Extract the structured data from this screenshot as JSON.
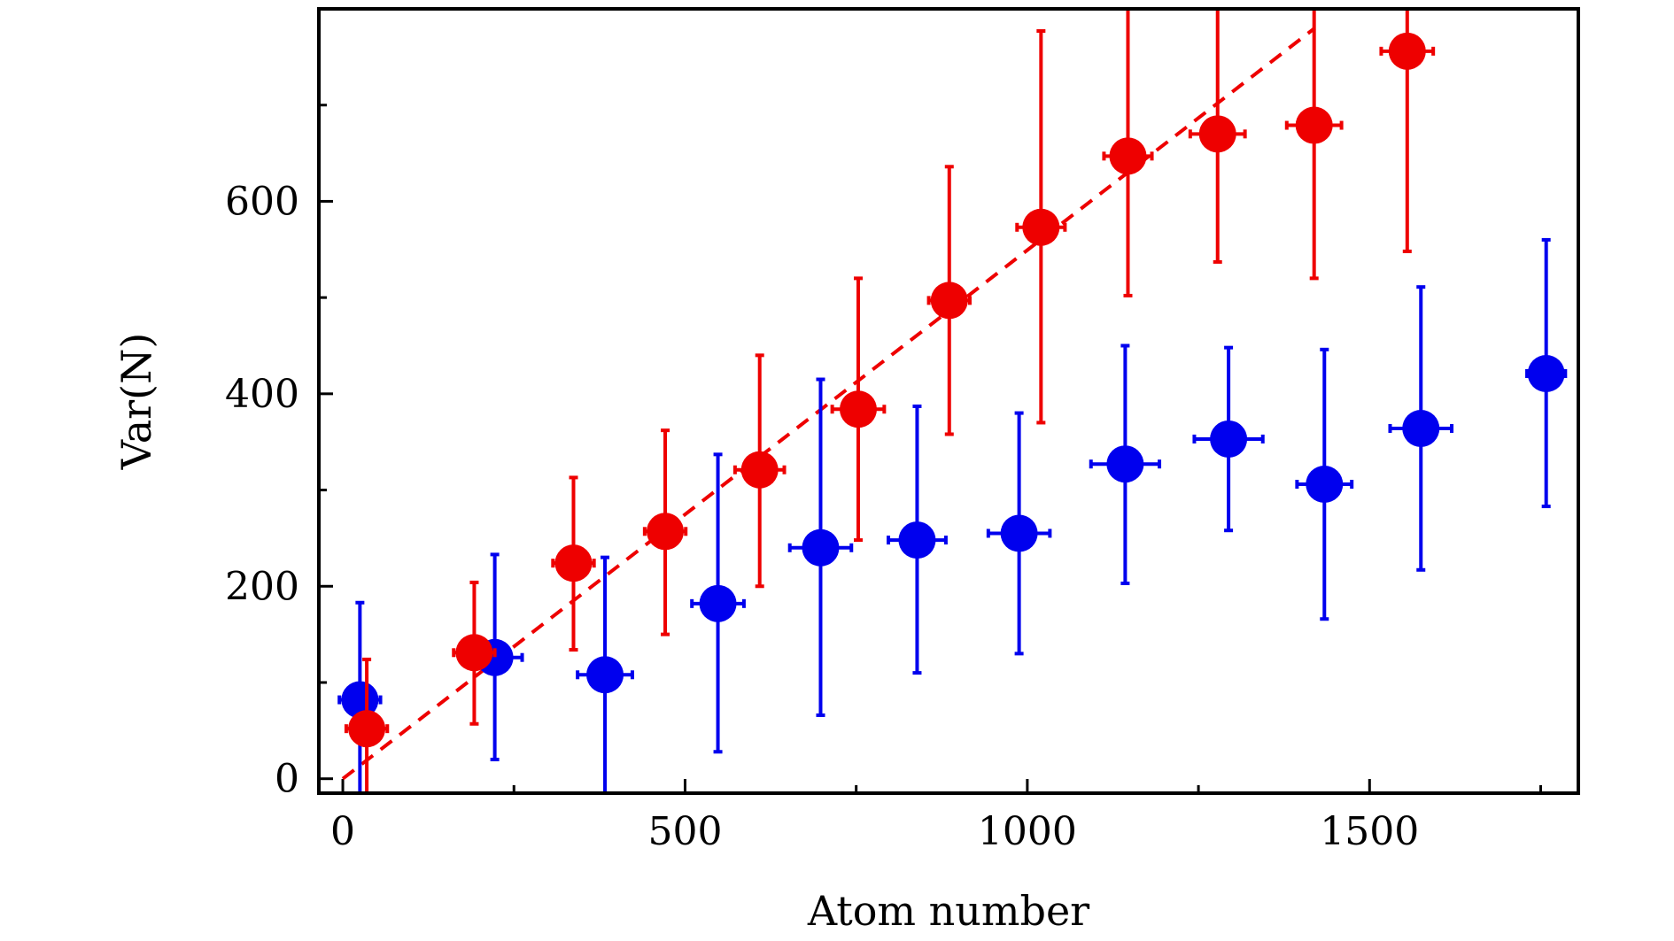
{
  "chart_data": {
    "type": "scatter",
    "title": "",
    "xlabel": "Atom number",
    "ylabel": "Var(N)",
    "xlim": [
      -35,
      1805
    ],
    "ylim": [
      -15,
      800
    ],
    "grid": false,
    "xticks": [
      {
        "value": 0,
        "label": "0"
      },
      {
        "value": 500,
        "label": "500"
      },
      {
        "value": 1000,
        "label": "1000"
      },
      {
        "value": 1500,
        "label": "1500"
      }
    ],
    "yticks": [
      {
        "value": 0,
        "label": "0"
      },
      {
        "value": 200,
        "label": "200"
      },
      {
        "value": 400,
        "label": "400"
      },
      {
        "value": 600,
        "label": "600"
      }
    ],
    "xminor": [
      250,
      750,
      1250,
      1750
    ],
    "yminor": [
      100,
      300,
      500,
      700
    ],
    "series": [
      {
        "color": "#0000ee",
        "points": [
          {
            "x": 25,
            "y": 82,
            "xerr": 30,
            "ylo": -15,
            "yhi": 183
          },
          {
            "x": 222,
            "y": 126,
            "xerr": 40,
            "ylo": 20,
            "yhi": 233
          },
          {
            "x": 383,
            "y": 108,
            "xerr": 40,
            "ylo": -15,
            "yhi": 230
          },
          {
            "x": 548,
            "y": 182,
            "xerr": 38,
            "ylo": 28,
            "yhi": 337
          },
          {
            "x": 698,
            "y": 240,
            "xerr": 45,
            "ylo": 66,
            "yhi": 415
          },
          {
            "x": 839,
            "y": 248,
            "xerr": 42,
            "ylo": 110,
            "yhi": 387
          },
          {
            "x": 988,
            "y": 255,
            "xerr": 45,
            "ylo": 130,
            "yhi": 380
          },
          {
            "x": 1143,
            "y": 327,
            "xerr": 50,
            "ylo": 203,
            "yhi": 450
          },
          {
            "x": 1294,
            "y": 353,
            "xerr": 50,
            "ylo": 258,
            "yhi": 448
          },
          {
            "x": 1434,
            "y": 306,
            "xerr": 40,
            "ylo": 166,
            "yhi": 446
          },
          {
            "x": 1575,
            "y": 364,
            "xerr": 45,
            "ylo": 217,
            "yhi": 511
          },
          {
            "x": 1758,
            "y": 421,
            "xerr": 28,
            "ylo": 283,
            "yhi": 560
          }
        ]
      },
      {
        "color": "#ee0000",
        "points": [
          {
            "x": 35,
            "y": 52,
            "xerr": 30,
            "ylo": -15,
            "yhi": 124
          },
          {
            "x": 192,
            "y": 131,
            "xerr": 30,
            "ylo": 57,
            "yhi": 204
          },
          {
            "x": 337,
            "y": 224,
            "xerr": 30,
            "ylo": 134,
            "yhi": 313
          },
          {
            "x": 471,
            "y": 257,
            "xerr": 30,
            "ylo": 150,
            "yhi": 362
          },
          {
            "x": 609,
            "y": 321,
            "xerr": 36,
            "ylo": 200,
            "yhi": 440
          },
          {
            "x": 753,
            "y": 384,
            "xerr": 38,
            "ylo": 248,
            "yhi": 520
          },
          {
            "x": 886,
            "y": 497,
            "xerr": 30,
            "ylo": 358,
            "yhi": 636
          },
          {
            "x": 1020,
            "y": 573,
            "xerr": 35,
            "ylo": 370,
            "yhi": 777
          },
          {
            "x": 1147,
            "y": 647,
            "xerr": 35,
            "ylo": 502,
            "yhi": 800
          },
          {
            "x": 1278,
            "y": 670,
            "xerr": 40,
            "ylo": 537,
            "yhi": 800
          },
          {
            "x": 1419,
            "y": 679,
            "xerr": 40,
            "ylo": 520,
            "yhi": 800
          },
          {
            "x": 1555,
            "y": 756,
            "xerr": 38,
            "ylo": 548,
            "yhi": 800
          }
        ]
      }
    ],
    "fit_line": {
      "color": "#ee0000",
      "style": "dashed",
      "x": [
        0,
        1420
      ],
      "y": [
        0,
        780
      ]
    }
  }
}
